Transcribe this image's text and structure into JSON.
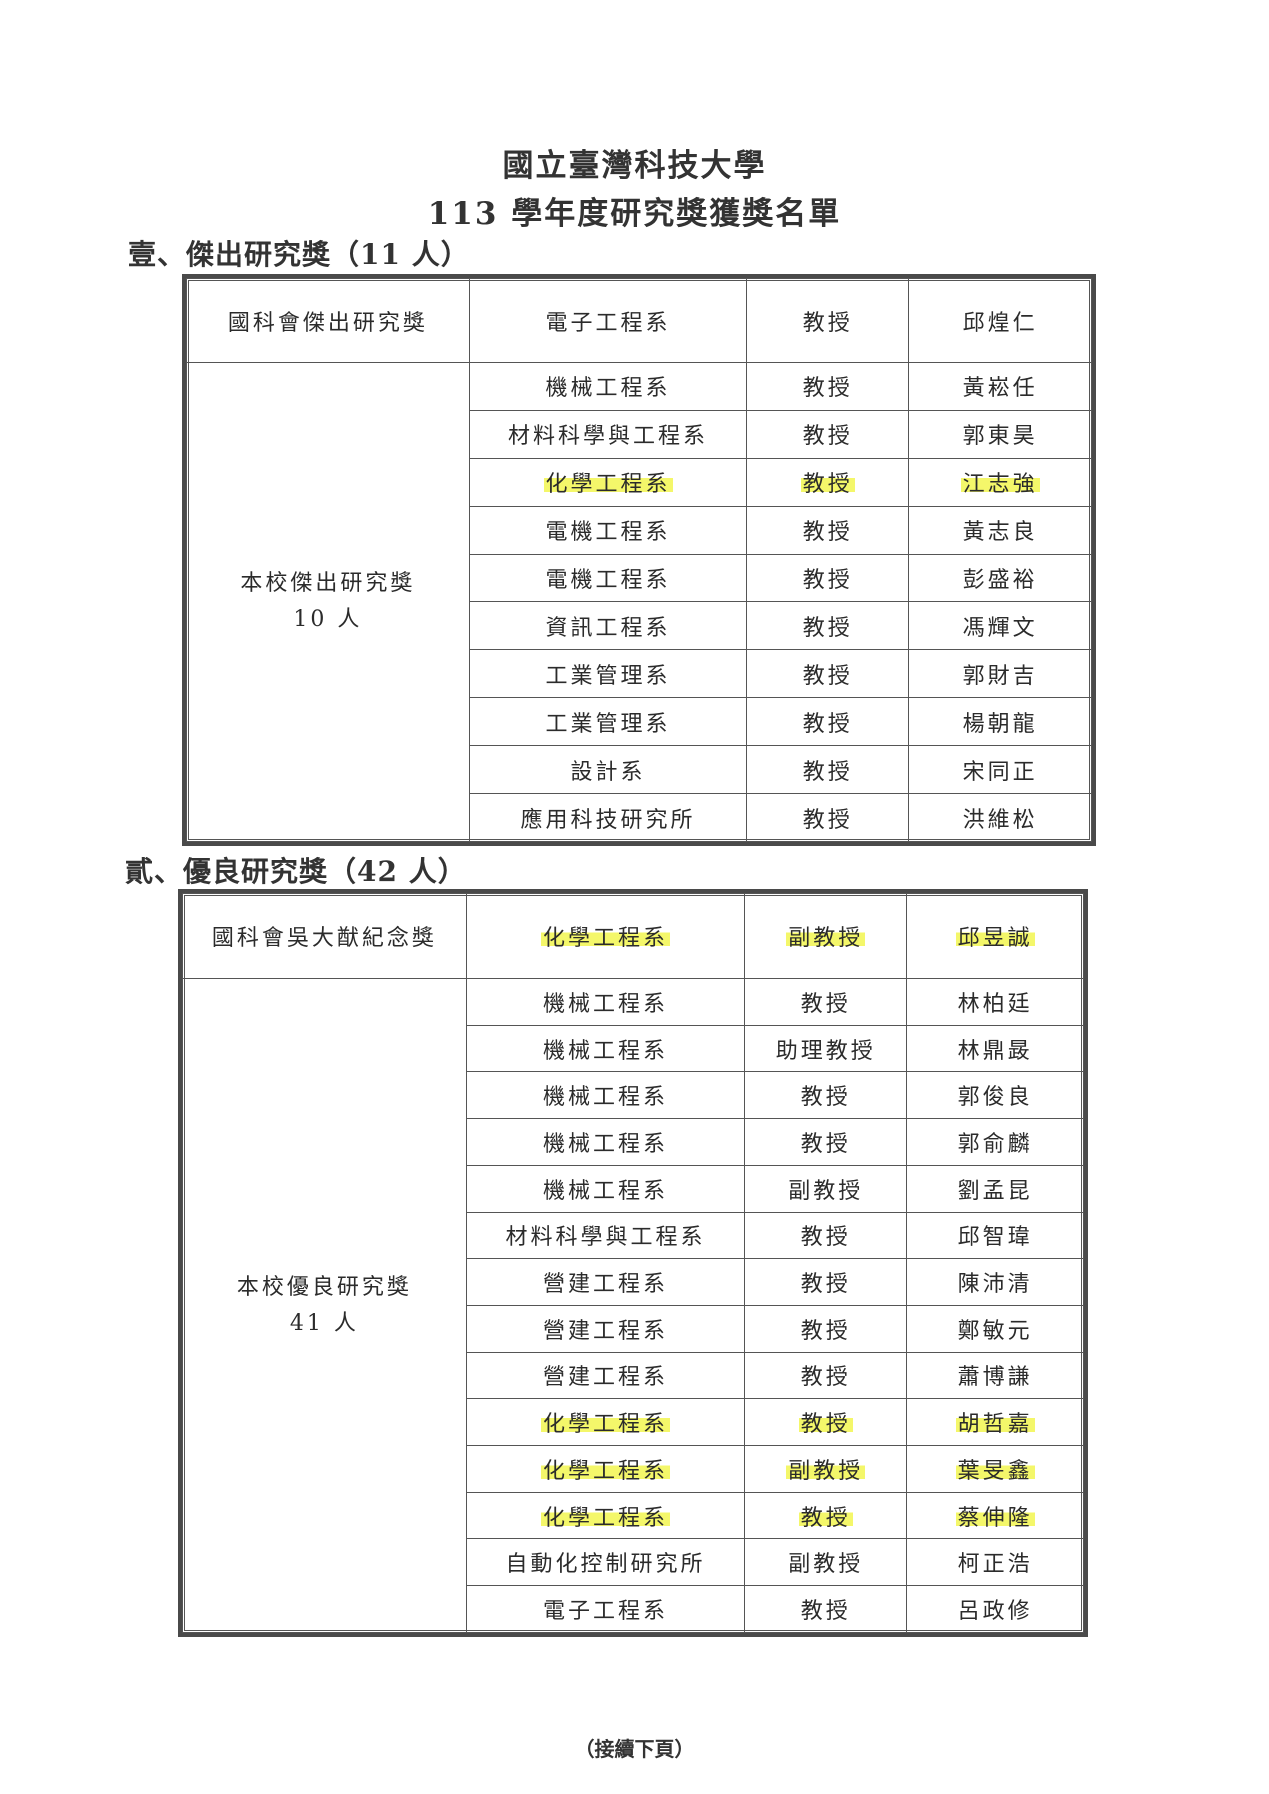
{
  "header": {
    "university": "國立臺灣科技大學",
    "list_title": "113 學年度研究獎獲獎名單"
  },
  "sections": [
    {
      "heading": "壹、傑出研究獎（11 人）",
      "top_row": {
        "award": "國科會傑出研究獎",
        "dept": "電子工程系",
        "rank": "教授",
        "name": "邱煌仁",
        "highlight": false
      },
      "group": {
        "label": "本校傑出研究獎",
        "count": "10 人",
        "rows": [
          {
            "dept": "機械工程系",
            "rank": "教授",
            "name": "黃崧任",
            "highlight": false
          },
          {
            "dept": "材料科學與工程系",
            "rank": "教授",
            "name": "郭東昊",
            "highlight": false
          },
          {
            "dept": "化學工程系",
            "rank": "教授",
            "name": "江志強",
            "highlight": true
          },
          {
            "dept": "電機工程系",
            "rank": "教授",
            "name": "黃志良",
            "highlight": false
          },
          {
            "dept": "電機工程系",
            "rank": "教授",
            "name": "彭盛裕",
            "highlight": false
          },
          {
            "dept": "資訊工程系",
            "rank": "教授",
            "name": "馮輝文",
            "highlight": false
          },
          {
            "dept": "工業管理系",
            "rank": "教授",
            "name": "郭財吉",
            "highlight": false
          },
          {
            "dept": "工業管理系",
            "rank": "教授",
            "name": "楊朝龍",
            "highlight": false
          },
          {
            "dept": "設計系",
            "rank": "教授",
            "name": "宋同正",
            "highlight": false
          },
          {
            "dept": "應用科技研究所",
            "rank": "教授",
            "name": "洪維松",
            "highlight": false
          }
        ]
      }
    },
    {
      "heading": "貳、優良研究獎（42 人）",
      "top_row": {
        "award": "國科會吳大猷紀念獎",
        "dept": "化學工程系",
        "rank": "副教授",
        "name": "邱昱誠",
        "highlight": true
      },
      "group": {
        "label": "本校優良研究獎",
        "count": "41 人",
        "rows": [
          {
            "dept": "機械工程系",
            "rank": "教授",
            "name": "林柏廷",
            "highlight": false
          },
          {
            "dept": "機械工程系",
            "rank": "助理教授",
            "name": "林鼎晸",
            "highlight": false
          },
          {
            "dept": "機械工程系",
            "rank": "教授",
            "name": "郭俊良",
            "highlight": false
          },
          {
            "dept": "機械工程系",
            "rank": "教授",
            "name": "郭俞麟",
            "highlight": false
          },
          {
            "dept": "機械工程系",
            "rank": "副教授",
            "name": "劉孟昆",
            "highlight": false
          },
          {
            "dept": "材料科學與工程系",
            "rank": "教授",
            "name": "邱智瑋",
            "highlight": false
          },
          {
            "dept": "營建工程系",
            "rank": "教授",
            "name": "陳沛清",
            "highlight": false
          },
          {
            "dept": "營建工程系",
            "rank": "教授",
            "name": "鄭敏元",
            "highlight": false
          },
          {
            "dept": "營建工程系",
            "rank": "教授",
            "name": "蕭博謙",
            "highlight": false
          },
          {
            "dept": "化學工程系",
            "rank": "教授",
            "name": "胡哲嘉",
            "highlight": true
          },
          {
            "dept": "化學工程系",
            "rank": "副教授",
            "name": "葉旻鑫",
            "highlight": true
          },
          {
            "dept": "化學工程系",
            "rank": "教授",
            "name": "蔡伸隆",
            "highlight": true
          },
          {
            "dept": "自動化控制研究所",
            "rank": "副教授",
            "name": "柯正浩",
            "highlight": false
          },
          {
            "dept": "電子工程系",
            "rank": "教授",
            "name": "呂政修",
            "highlight": false
          }
        ]
      }
    }
  ],
  "footer": {
    "note": "（接續下頁）"
  },
  "colors": {
    "highlight": "#f4f76a",
    "border": "#4a4a4a"
  }
}
